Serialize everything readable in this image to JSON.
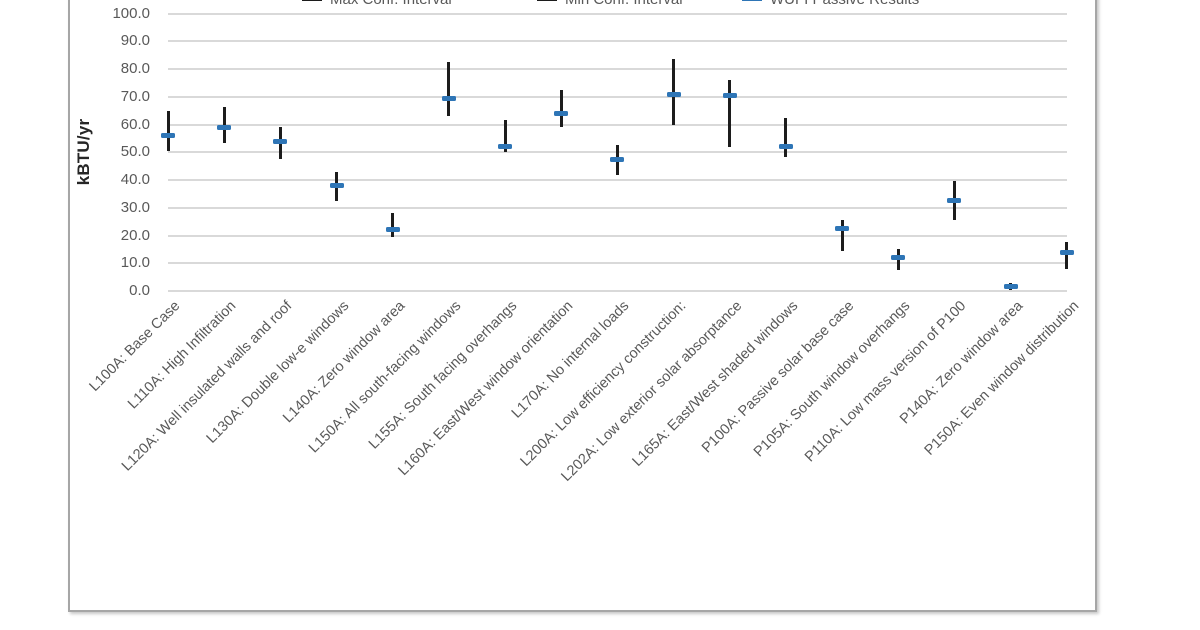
{
  "chart_data": {
    "type": "scatter",
    "title": "",
    "xlabel": "",
    "ylabel": "kBTU/yr",
    "ylim": [
      0,
      100
    ],
    "ytick_step": 10,
    "ytick_decimals": 1,
    "grid": true,
    "legend_position": "top (clipped by image edge)",
    "legend_entries": [
      {
        "label": "Max Conf. Interval",
        "marker": "dash-icon",
        "color": "#1c1c1c"
      },
      {
        "label": "Min Conf. Interval",
        "marker": "dash-icon",
        "color": "#1c1c1c"
      },
      {
        "label": "WUFI Passive Results",
        "marker": "dash-icon",
        "color": "#2e75b6"
      }
    ],
    "categories": [
      "L100A: Base Case",
      "L110A: High Infiltration",
      "L120A: Well insulated walls and roof",
      "L130A: Double low-e windows",
      "L140A: Zero window area",
      "L150A: All south-facing windows",
      "L155A: South facing overhangs",
      "L160A: East/West window orientation",
      "L170A: No internal loads",
      "L200A: Low efficiency construction:",
      "L202A: Low exterior solar absorptance",
      "L165A: East/West shaded windows",
      "P100A: Passive solar base case",
      "P105A: South window overhangs",
      "P110A: Low mass version of P100",
      "P140A: Zero window area",
      "P150A: Even window distribution"
    ],
    "series": [
      {
        "name": "Max Conf. Interval",
        "values": [
          65.0,
          66.5,
          59.0,
          43.0,
          28.0,
          82.5,
          61.5,
          72.5,
          52.5,
          83.5,
          76.0,
          62.5,
          25.5,
          15.0,
          39.5,
          3.0,
          17.5
        ]
      },
      {
        "name": "Min Conf. Interval",
        "values": [
          50.5,
          53.5,
          47.5,
          32.5,
          19.5,
          63.0,
          50.0,
          59.0,
          42.0,
          60.0,
          52.0,
          48.5,
          14.5,
          7.5,
          25.5,
          0.5,
          8.0
        ]
      },
      {
        "name": "WUFI Passive Results",
        "values": [
          56.0,
          59.0,
          54.0,
          38.0,
          22.0,
          69.5,
          52.0,
          64.0,
          47.5,
          71.0,
          70.5,
          52.0,
          22.5,
          12.0,
          32.5,
          1.5,
          14.0
        ]
      }
    ],
    "colors": {
      "error_bar": "#1c1c1c",
      "wufi_marker": "#2e75b6",
      "gridline": "#d9d9d9",
      "tick_text": "#595959",
      "axis_title_text": "#262626",
      "chart_border": "#a6a6a6"
    }
  }
}
